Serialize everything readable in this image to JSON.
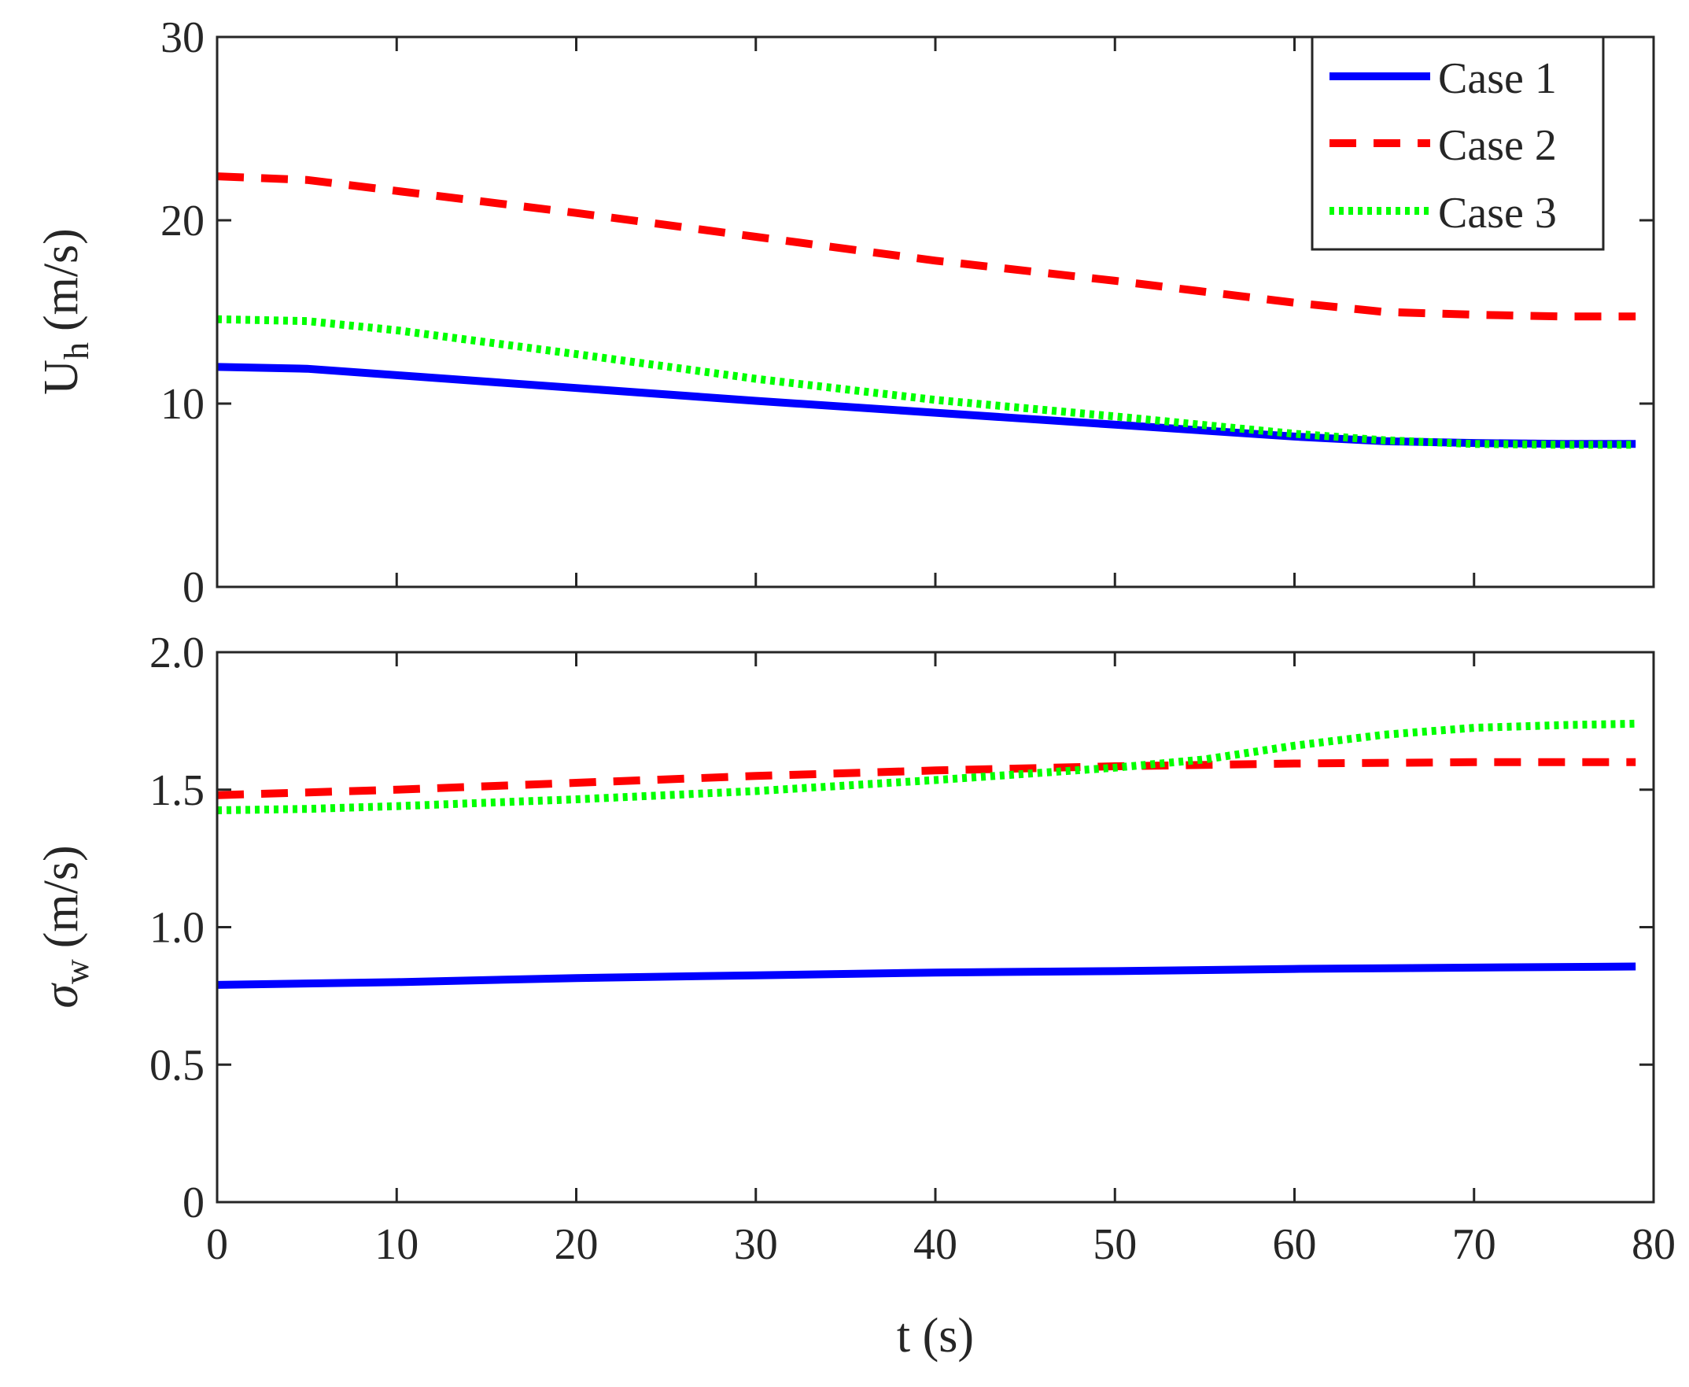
{
  "chart_data": [
    {
      "type": "line",
      "panel": "top",
      "ylabel_main": "U",
      "ylabel_sub": "h",
      "ylabel_unit": "(m/s)",
      "xlabel": "",
      "xlim": [
        0,
        80
      ],
      "ylim": [
        0,
        30
      ],
      "xticks": [
        0,
        10,
        20,
        30,
        40,
        50,
        60,
        70,
        80
      ],
      "yticks": [
        0,
        10,
        20,
        30
      ],
      "ytick_labels": [
        "0",
        "10",
        "20",
        "30"
      ],
      "grid": false,
      "legend": {
        "placement": "top-right",
        "entries": [
          "Case 1",
          "Case 2",
          "Case 3"
        ]
      },
      "series": [
        {
          "name": "Case 1",
          "color": "#0000ff",
          "style": "solid",
          "x": [
            0,
            5,
            10,
            20,
            30,
            40,
            50,
            60,
            65,
            70,
            75,
            79
          ],
          "values": [
            12.0,
            11.9,
            11.55,
            10.85,
            10.15,
            9.5,
            8.85,
            8.2,
            7.95,
            7.85,
            7.8,
            7.8
          ]
        },
        {
          "name": "Case 2",
          "color": "#ff0000",
          "style": "dashed",
          "x": [
            0,
            5,
            10,
            20,
            30,
            40,
            50,
            60,
            65,
            70,
            75,
            79
          ],
          "values": [
            22.4,
            22.2,
            21.6,
            20.4,
            19.1,
            17.8,
            16.7,
            15.5,
            15.0,
            14.85,
            14.75,
            14.75
          ]
        },
        {
          "name": "Case 3",
          "color": "#00ff00",
          "style": "dotted",
          "x": [
            0,
            5,
            10,
            20,
            30,
            40,
            50,
            60,
            65,
            70,
            75,
            79
          ],
          "values": [
            14.6,
            14.5,
            14.0,
            12.7,
            11.35,
            10.2,
            9.3,
            8.35,
            8.0,
            7.8,
            7.75,
            7.75
          ]
        }
      ]
    },
    {
      "type": "line",
      "panel": "bottom",
      "ylabel_main": "σ",
      "ylabel_sub": "w",
      "ylabel_unit": "(m/s)",
      "xlabel": "t (s)",
      "xlim": [
        0,
        80
      ],
      "ylim": [
        0,
        2.0
      ],
      "xticks": [
        0,
        10,
        20,
        30,
        40,
        50,
        60,
        70,
        80
      ],
      "xtick_labels": [
        "0",
        "10",
        "20",
        "30",
        "40",
        "50",
        "60",
        "70",
        "80"
      ],
      "yticks": [
        0,
        0.5,
        1.0,
        1.5,
        2.0
      ],
      "ytick_labels": [
        "0",
        "0.5",
        "1.0",
        "1.5",
        "2.0"
      ],
      "grid": false,
      "series": [
        {
          "name": "Case 1",
          "color": "#0000ff",
          "style": "solid",
          "x": [
            0,
            10,
            20,
            30,
            40,
            50,
            60,
            70,
            79
          ],
          "values": [
            0.79,
            0.8,
            0.815,
            0.825,
            0.835,
            0.84,
            0.848,
            0.853,
            0.857
          ]
        },
        {
          "name": "Case 2",
          "color": "#ff0000",
          "style": "dashed",
          "x": [
            0,
            10,
            20,
            30,
            40,
            50,
            60,
            70,
            79
          ],
          "values": [
            1.48,
            1.5,
            1.525,
            1.55,
            1.57,
            1.585,
            1.595,
            1.6,
            1.6
          ]
        },
        {
          "name": "Case 3",
          "color": "#00ff00",
          "style": "dotted",
          "x": [
            0,
            5,
            10,
            20,
            30,
            40,
            50,
            55,
            60,
            65,
            70,
            75,
            79
          ],
          "values": [
            1.425,
            1.43,
            1.44,
            1.465,
            1.495,
            1.535,
            1.58,
            1.61,
            1.66,
            1.7,
            1.725,
            1.735,
            1.74
          ]
        }
      ]
    }
  ]
}
